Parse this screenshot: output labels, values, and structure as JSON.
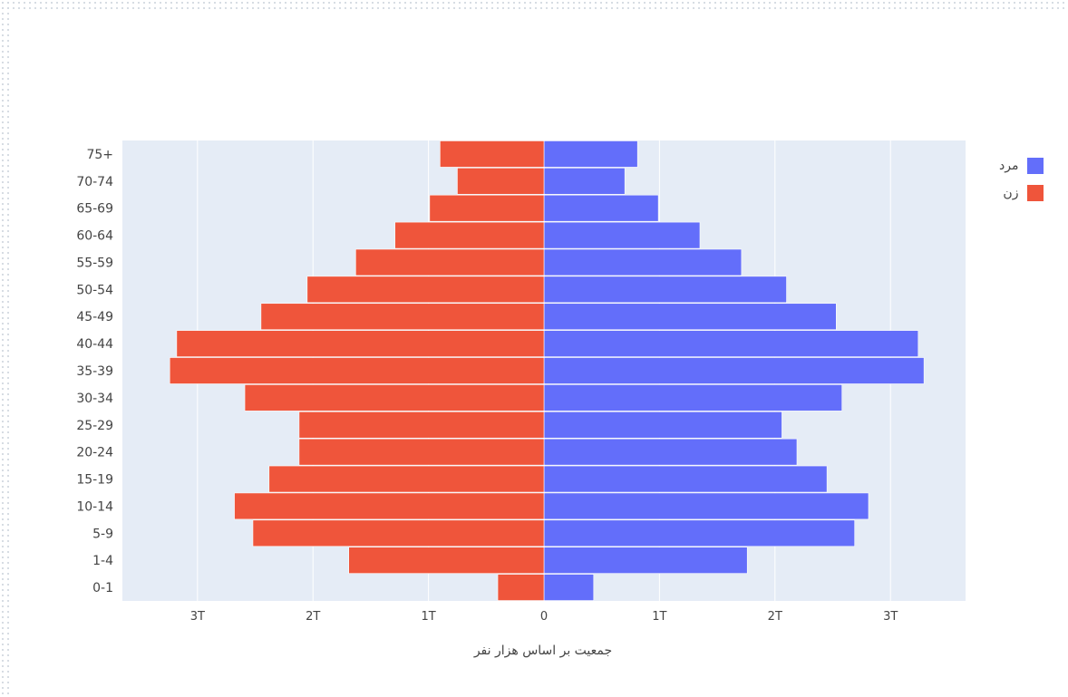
{
  "chart_data": {
    "type": "bar",
    "orientation": "horizontal",
    "barmode": "relative",
    "xlabel": "جمعیت بر اساس  هزار نفر",
    "categories": [
      "0-1",
      "1-4",
      "5-9",
      "10-14",
      "15-19",
      "20-24",
      "25-29",
      "30-34",
      "35-39",
      "40-44",
      "45-49",
      "50-54",
      "55-59",
      "60-64",
      "65-69",
      "70-74",
      "75+"
    ],
    "xlim": [
      -3.65,
      3.65
    ],
    "x_ticks": [
      -3,
      -2,
      -1,
      0,
      1,
      2,
      3
    ],
    "x_tick_labels": [
      "3T",
      "2T",
      "1T",
      "0",
      "1T",
      "2T",
      "3T"
    ],
    "grid": true,
    "legend_position": "top-right",
    "series": [
      {
        "name": "مرد",
        "color": "#636efa",
        "values": [
          0.43,
          1.76,
          2.69,
          2.81,
          2.45,
          2.19,
          2.06,
          2.58,
          3.29,
          3.24,
          2.53,
          2.1,
          1.71,
          1.35,
          0.99,
          0.7,
          0.81
        ]
      },
      {
        "name": "زن",
        "color": "#ef553b",
        "values": [
          -0.4,
          -1.69,
          -2.52,
          -2.68,
          -2.38,
          -2.12,
          -2.12,
          -2.59,
          -3.24,
          -3.18,
          -2.45,
          -2.05,
          -1.63,
          -1.29,
          -0.99,
          -0.75,
          -0.9
        ]
      }
    ]
  },
  "colors": {
    "plot_background": "#e5ecf6",
    "grid": "#ffffff",
    "axis_text": "#444444"
  }
}
